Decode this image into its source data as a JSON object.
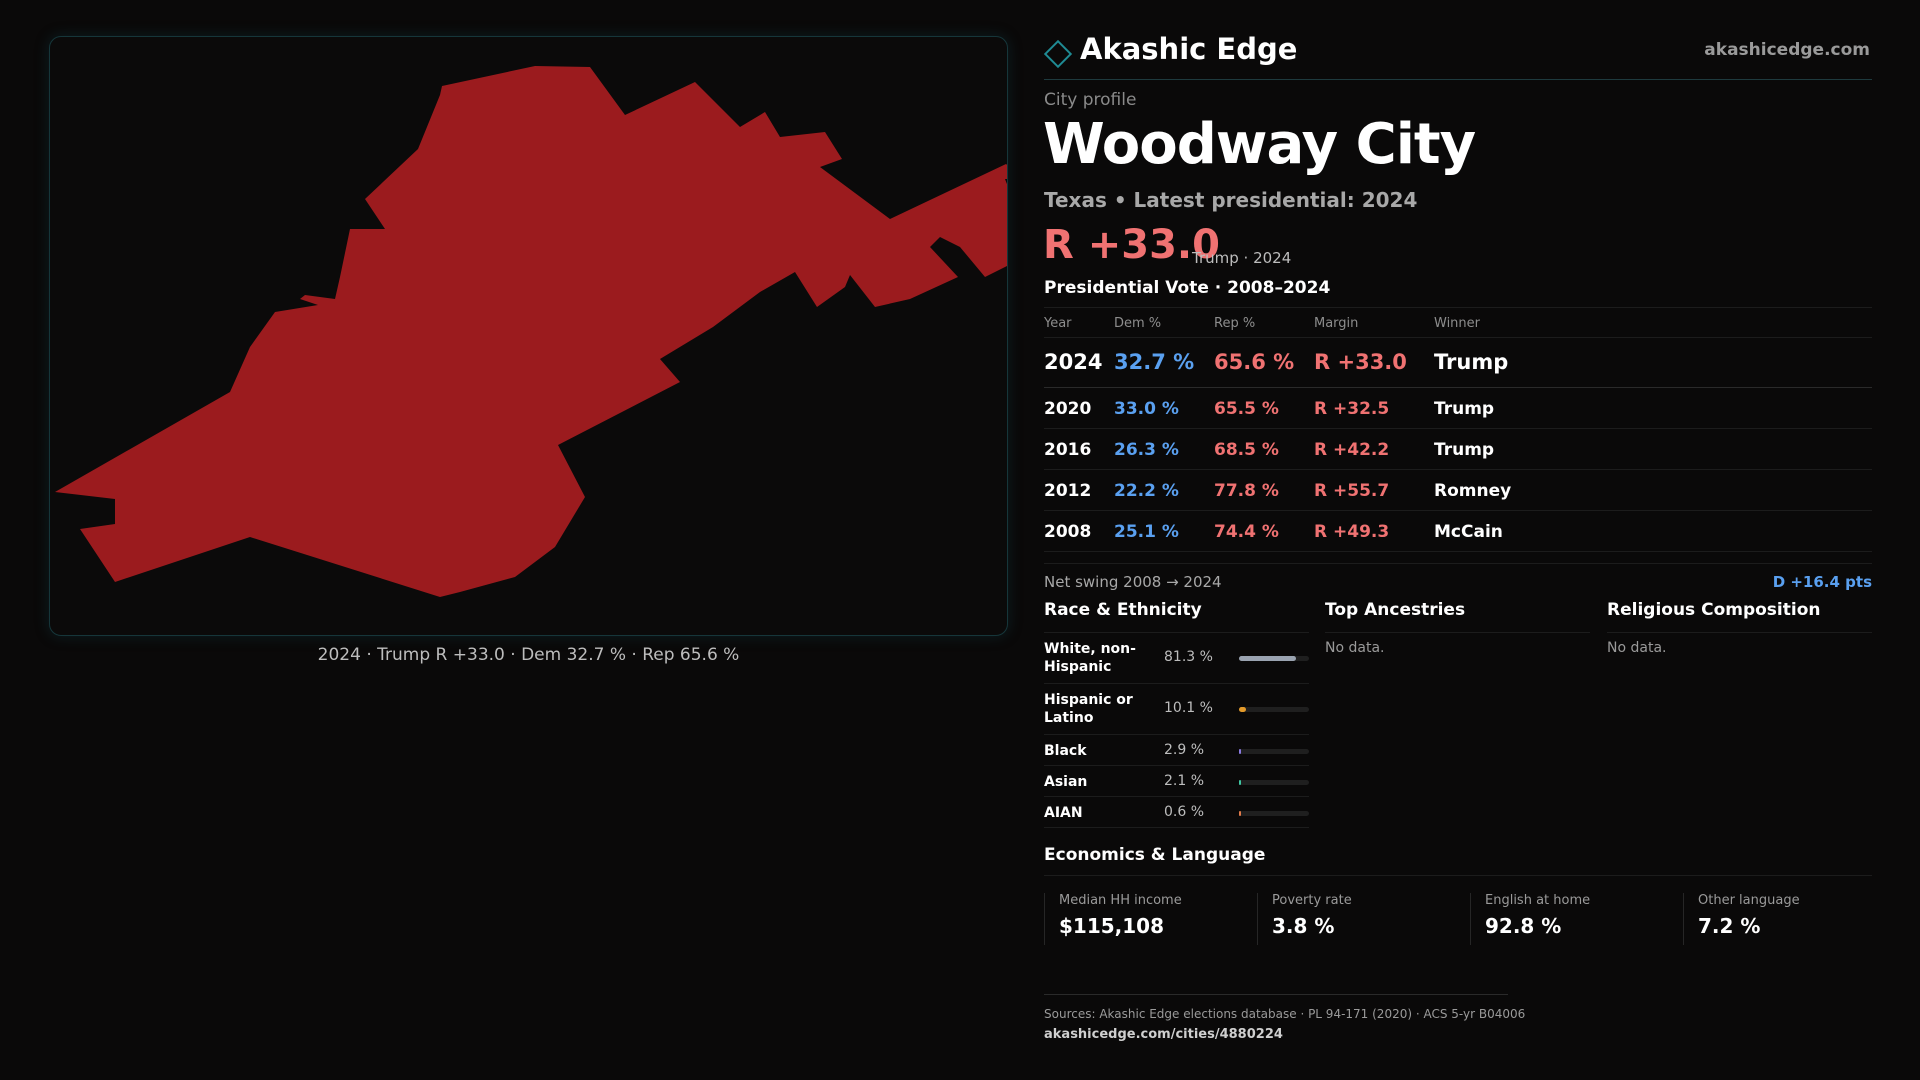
{
  "map": {
    "fill_color": "#9b1b1e",
    "caption": "2024 · Trump R +33.0 · Dem 32.7 % · Rep 65.6 %"
  },
  "brand": {
    "name": "Akashic Edge",
    "site": "akashicedge.com",
    "logo_icon": "diamond-icon"
  },
  "profile": {
    "kicker": "City profile",
    "title": "Woodway City",
    "subtitle": "Texas • Latest presidential: 2024",
    "margin": "R +33.0",
    "margin_note": "Trump · 2024"
  },
  "presidential_vote": {
    "title": "Presidential Vote · 2008–2024",
    "columns": [
      "Year",
      "Dem %",
      "Rep %",
      "Margin",
      "Winner"
    ],
    "rows": [
      {
        "year": "2024",
        "dem": "32.7 %",
        "rep": "65.6 %",
        "margin": "R +33.0",
        "winner": "Trump"
      },
      {
        "year": "2020",
        "dem": "33.0 %",
        "rep": "65.5 %",
        "margin": "R +32.5",
        "winner": "Trump"
      },
      {
        "year": "2016",
        "dem": "26.3 %",
        "rep": "68.5 %",
        "margin": "R +42.2",
        "winner": "Trump"
      },
      {
        "year": "2012",
        "dem": "22.2 %",
        "rep": "77.8 %",
        "margin": "R +55.7",
        "winner": "Romney"
      },
      {
        "year": "2008",
        "dem": "25.1 %",
        "rep": "74.4 %",
        "margin": "R +49.3",
        "winner": "McCain"
      }
    ],
    "swing_label": "Net swing 2008 → 2024",
    "swing_value": "D +16.4 pts"
  },
  "race": {
    "title": "Race & Ethnicity",
    "items": [
      {
        "label": "White, non-Hispanic",
        "value": "81.3 %",
        "fraction": 0.813,
        "color": "#9aa3b0"
      },
      {
        "label": "Hispanic or Latino",
        "value": "10.1 %",
        "fraction": 0.101,
        "color": "#e39a2a"
      },
      {
        "label": "Black",
        "value": "2.9 %",
        "fraction": 0.029,
        "color": "#8a7ae0"
      },
      {
        "label": "Asian",
        "value": "2.1 %",
        "fraction": 0.021,
        "color": "#3fc6a2"
      },
      {
        "label": "AIAN",
        "value": "0.6 %",
        "fraction": 0.006,
        "color": "#e07a4a"
      }
    ]
  },
  "ancestries": {
    "title": "Top Ancestries",
    "empty": "No data."
  },
  "religion": {
    "title": "Religious Composition",
    "empty": "No data."
  },
  "economics": {
    "title": "Economics & Language",
    "items": [
      {
        "label": "Median HH income",
        "value": "$115,108"
      },
      {
        "label": "Poverty rate",
        "value": "3.8 %"
      },
      {
        "label": "English at home",
        "value": "92.8 %"
      },
      {
        "label": "Other language",
        "value": "7.2 %"
      }
    ]
  },
  "footer": {
    "sources": "Sources: Akashic Edge elections database · PL 94-171 (2020) · ACS 5-yr B04006",
    "url": "akashicedge.com/cities/4880224"
  }
}
